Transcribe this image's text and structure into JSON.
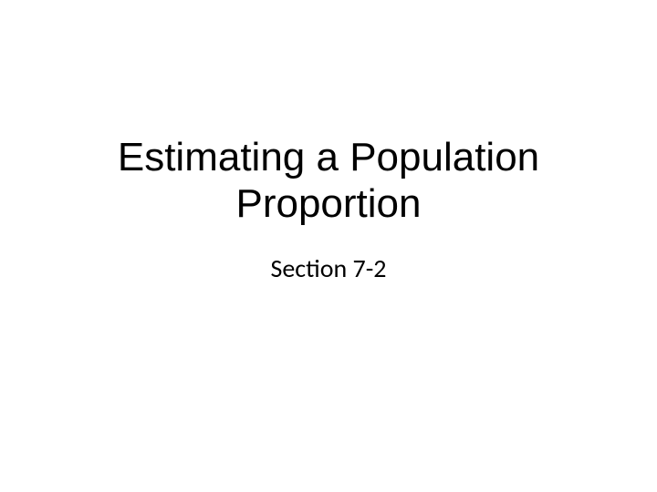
{
  "slide": {
    "title_line1": "Estimating a Population",
    "title_line2": "Proportion",
    "subtitle": "Section 7-2",
    "background_color": "#ffffff",
    "title_color": "#000000",
    "title_fontsize": 44,
    "title_font": "Arial",
    "subtitle_color": "#000000",
    "subtitle_fontsize": 28,
    "subtitle_font": "Calibri"
  }
}
